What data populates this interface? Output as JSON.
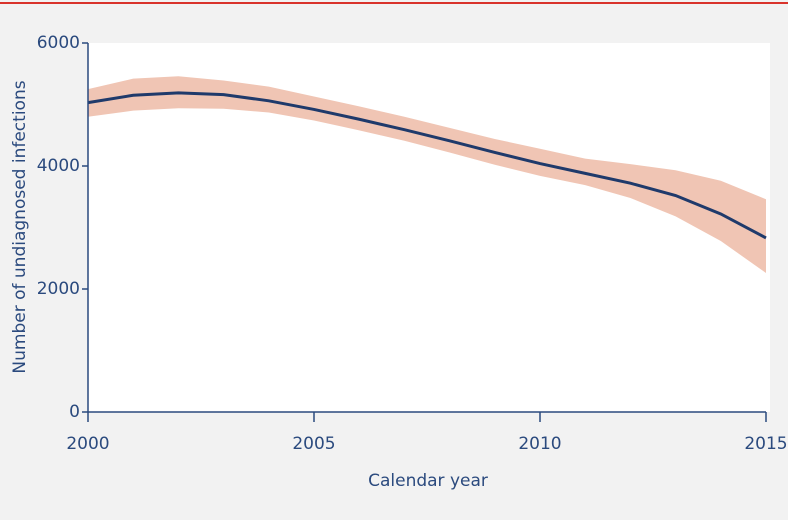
{
  "chart_data": {
    "type": "line",
    "xlabel": "Calendar year",
    "ylabel": "Number of undiagnosed infections",
    "x": [
      2000,
      2001,
      2002,
      2003,
      2004,
      2005,
      2006,
      2007,
      2008,
      2009,
      2010,
      2011,
      2012,
      2013,
      2014,
      2015
    ],
    "values": [
      5030,
      5150,
      5190,
      5160,
      5060,
      4920,
      4760,
      4590,
      4410,
      4220,
      4040,
      3880,
      3720,
      3520,
      3220,
      2830
    ],
    "lower": [
      4800,
      4900,
      4940,
      4930,
      4870,
      4740,
      4580,
      4410,
      4220,
      4020,
      3840,
      3690,
      3480,
      3180,
      2780,
      2260
    ],
    "upper": [
      5250,
      5420,
      5460,
      5390,
      5290,
      5130,
      4970,
      4800,
      4620,
      4440,
      4280,
      4120,
      4030,
      3930,
      3760,
      3460
    ],
    "color": "#1f3a6b",
    "band_color": "#f0c5b4",
    "xlim": [
      2000,
      2015
    ],
    "ylim": [
      0,
      6000
    ],
    "xticks": [
      2000,
      2005,
      2010,
      2015
    ],
    "yticks": [
      0,
      2000,
      4000,
      6000
    ]
  }
}
